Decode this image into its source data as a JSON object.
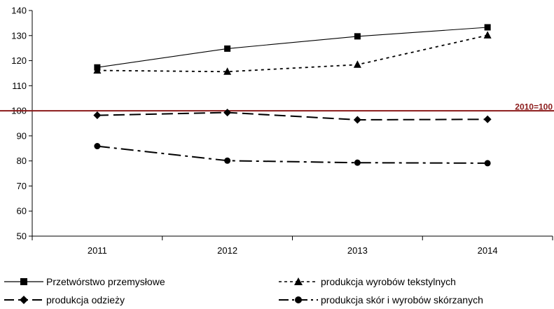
{
  "chart_data": {
    "type": "line",
    "categories": [
      "2011",
      "2012",
      "2013",
      "2014"
    ],
    "ylim": [
      50,
      140
    ],
    "yticks": [
      50,
      60,
      70,
      80,
      90,
      100,
      110,
      120,
      130,
      140
    ],
    "grid": "none",
    "legend_position": "bottom",
    "series": [
      {
        "name": "Przetwórstwo przemysłowe",
        "values": [
          117.3,
          124.8,
          129.7,
          133.3
        ],
        "marker": "square",
        "dash": "solid"
      },
      {
        "name": "produkcja wyrobów tekstylnych",
        "values": [
          116.1,
          115.6,
          118.4,
          130.1
        ],
        "marker": "triangle",
        "dash": "dotted"
      },
      {
        "name": "produkcja odzieży",
        "values": [
          98.2,
          99.3,
          96.4,
          96.6
        ],
        "marker": "diamond",
        "dash": "dashed"
      },
      {
        "name": "produkcja skór i wyrobów skórzanych",
        "values": [
          85.9,
          80.1,
          79.3,
          79.1
        ],
        "marker": "circle",
        "dash": "dashdot"
      }
    ],
    "reference_line": {
      "value": 100,
      "label": "2010=100",
      "color": "#8b1a1a"
    }
  }
}
